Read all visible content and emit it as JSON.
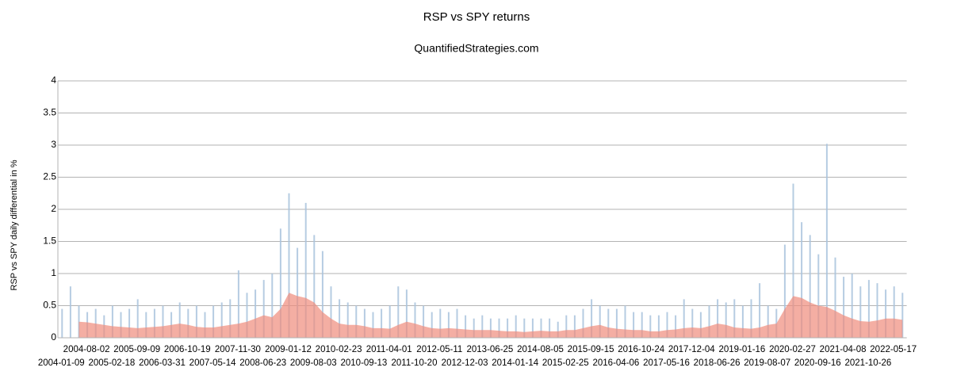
{
  "chart_data": {
    "type": "bar",
    "title": "RSP vs SPY returns",
    "subtitle": "QuantifiedStrategies.com",
    "y_label": "RSP vs SPY daily differential in %",
    "categories": [
      "2004-01-09",
      null,
      null,
      "2004-08-02",
      null,
      null,
      "2005-02-18",
      null,
      null,
      "2005-09-09",
      null,
      null,
      "2006-03-31",
      null,
      null,
      "2006-10-19",
      null,
      null,
      "2007-05-14",
      null,
      null,
      "2007-11-30",
      null,
      null,
      "2008-06-23",
      null,
      null,
      "2009-01-12",
      null,
      null,
      "2009-08-03",
      null,
      null,
      "2010-02-23",
      null,
      null,
      "2010-09-13",
      null,
      null,
      "2011-04-01",
      null,
      null,
      "2011-10-20",
      null,
      null,
      "2012-05-11",
      null,
      null,
      "2012-12-03",
      null,
      null,
      "2013-06-25",
      null,
      null,
      "2014-01-14",
      null,
      null,
      "2014-08-05",
      null,
      null,
      "2015-02-25",
      null,
      null,
      "2015-09-15",
      null,
      null,
      "2016-04-06",
      null,
      null,
      "2016-10-24",
      null,
      null,
      "2017-05-16",
      null,
      null,
      "2017-12-04",
      null,
      null,
      "2018-06-26",
      null,
      null,
      "2019-01-16",
      null,
      null,
      "2019-08-07",
      null,
      null,
      "2020-02-27",
      null,
      null,
      "2020-09-16",
      null,
      null,
      "2021-04-08",
      null,
      null,
      "2021-10-26",
      null,
      null,
      "2022-05-17",
      null
    ],
    "series": [
      {
        "type": "bar",
        "color": "#a9c3dd",
        "values": [
          0.45,
          0.8,
          0.5,
          0.4,
          0.45,
          0.35,
          0.5,
          0.4,
          0.45,
          0.6,
          0.4,
          0.45,
          0.5,
          0.4,
          0.55,
          0.45,
          0.5,
          0.4,
          0.5,
          0.55,
          0.6,
          1.05,
          0.7,
          0.75,
          0.9,
          1.0,
          1.7,
          2.25,
          1.4,
          2.1,
          1.6,
          1.35,
          0.8,
          0.6,
          0.55,
          0.5,
          0.45,
          0.4,
          0.45,
          0.5,
          0.8,
          0.75,
          0.55,
          0.5,
          0.4,
          0.45,
          0.4,
          0.45,
          0.35,
          0.3,
          0.35,
          0.3,
          0.3,
          0.3,
          0.35,
          0.3,
          0.3,
          0.3,
          0.3,
          0.25,
          0.35,
          0.35,
          0.45,
          0.6,
          0.5,
          0.45,
          0.45,
          0.5,
          0.4,
          0.4,
          0.35,
          0.35,
          0.4,
          0.35,
          0.6,
          0.45,
          0.4,
          0.5,
          0.6,
          0.55,
          0.6,
          0.5,
          0.6,
          0.85,
          0.5,
          0.45,
          1.45,
          2.4,
          1.8,
          1.6,
          1.3,
          3.02,
          1.25,
          0.95,
          1.0,
          0.8,
          0.9,
          0.85,
          0.75,
          0.8,
          0.7
        ]
      },
      {
        "type": "area",
        "color": "#f08c7c",
        "values": [
          null,
          null,
          0.25,
          0.24,
          0.22,
          0.2,
          0.18,
          0.17,
          0.16,
          0.15,
          0.16,
          0.17,
          0.18,
          0.2,
          0.22,
          0.2,
          0.17,
          0.16,
          0.16,
          0.18,
          0.2,
          0.22,
          0.25,
          0.3,
          0.35,
          0.32,
          0.45,
          0.7,
          0.65,
          0.62,
          0.55,
          0.4,
          0.3,
          0.22,
          0.2,
          0.2,
          0.18,
          0.15,
          0.15,
          0.14,
          0.2,
          0.25,
          0.22,
          0.18,
          0.15,
          0.14,
          0.15,
          0.14,
          0.13,
          0.12,
          0.12,
          0.12,
          0.11,
          0.1,
          0.1,
          0.09,
          0.1,
          0.11,
          0.1,
          0.1,
          0.12,
          0.12,
          0.15,
          0.18,
          0.2,
          0.16,
          0.14,
          0.13,
          0.12,
          0.12,
          0.1,
          0.1,
          0.12,
          0.13,
          0.15,
          0.16,
          0.15,
          0.18,
          0.22,
          0.2,
          0.16,
          0.15,
          0.14,
          0.16,
          0.2,
          0.22,
          0.45,
          0.65,
          0.62,
          0.55,
          0.5,
          0.48,
          0.42,
          0.35,
          0.3,
          0.26,
          0.25,
          0.27,
          0.3,
          0.3,
          0.28
        ]
      }
    ],
    "ylim": [
      0,
      4
    ],
    "yticks": [
      0,
      0.5,
      1,
      1.5,
      2,
      2.5,
      3,
      3.5,
      4
    ],
    "grid": true
  }
}
